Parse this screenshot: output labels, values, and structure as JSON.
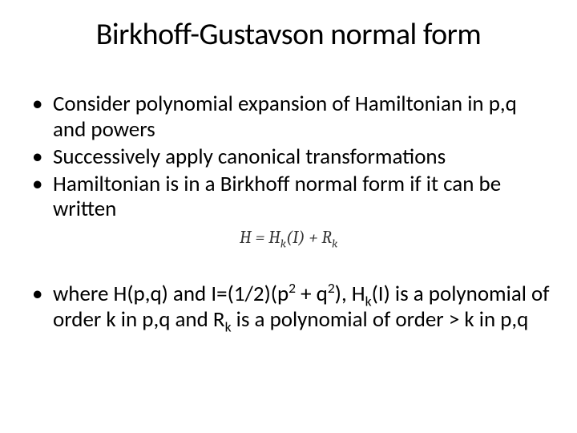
{
  "slide": {
    "title": "Birkhoff-Gustavson normal form",
    "bullets": [
      {
        "segments": [
          {
            "t": "Consider polynomial expansion of Hamiltonian in p,q and powers"
          }
        ]
      },
      {
        "segments": [
          {
            "t": "Successively apply canonical transformations"
          }
        ]
      },
      {
        "segments": [
          {
            "t": "Hamiltonian is in a Birkhoff normal form if it can be written"
          }
        ]
      }
    ],
    "formula": {
      "segments": [
        {
          "t": "H = H"
        },
        {
          "t": "k",
          "sub": true
        },
        {
          "t": "(I) + R"
        },
        {
          "t": "k",
          "sub": true
        }
      ]
    },
    "bullets2": [
      {
        "segments": [
          {
            "t": "where H(p,q) and I=(1/2)(p"
          },
          {
            "t": "2",
            "sup": true
          },
          {
            "t": " + q"
          },
          {
            "t": "2",
            "sup": true
          },
          {
            "t": "), H"
          },
          {
            "t": "k",
            "sub": true
          },
          {
            "t": "(I) is a polynomial of order k in p,q and R"
          },
          {
            "t": "k",
            "sub": true
          },
          {
            "t": "  is a polynomial of order > k in p,q"
          }
        ]
      }
    ]
  },
  "style": {
    "background_color": "#ffffff",
    "text_color": "#000000",
    "title_fontsize": 38,
    "body_fontsize": 27,
    "formula_fontsize": 22,
    "font_family": "Calibri"
  }
}
